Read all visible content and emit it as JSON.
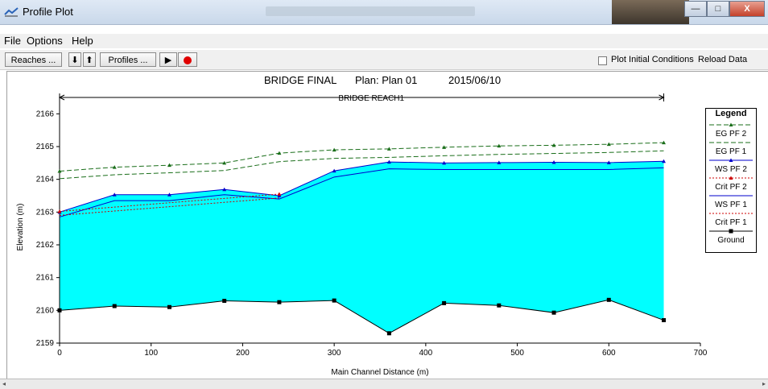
{
  "window": {
    "title": "Profile Plot",
    "min_label": "—",
    "max_label": "□",
    "close_label": "X"
  },
  "menu": {
    "items": [
      "File",
      "Options",
      "Help"
    ]
  },
  "toolbar": {
    "reaches_label": "Reaches ...",
    "down_arrow": "⬇",
    "up_arrow": "⬆",
    "profiles_label": "Profiles ...",
    "play_label": "▶",
    "plot_initial_conditions_label": "Plot Initial Conditions",
    "plot_initial_conditions_checked": false,
    "reload_label": "Reload Data"
  },
  "colors": {
    "water": "#00ffff",
    "ws": "#0000cc",
    "crit": "#cc0000",
    "eg": "#1a6e1a",
    "ground": "#000000"
  },
  "chart_data": {
    "type": "area",
    "title_parts": [
      "BRIDGE FINAL",
      "Plan: Plan 01",
      "2015/06/10"
    ],
    "reach_label": "BRIDGE REACH1",
    "xlabel": "Main Channel Distance (m)",
    "ylabel": "Elevation (m)",
    "xlim": [
      0,
      700
    ],
    "ylim": [
      2159,
      2166.5
    ],
    "xticks": [
      0,
      100,
      200,
      300,
      400,
      500,
      600,
      700
    ],
    "yticks": [
      2159,
      2160,
      2161,
      2162,
      2163,
      2164,
      2165,
      2166
    ],
    "reach_extent": [
      0,
      660
    ],
    "x": [
      0,
      60,
      120,
      180,
      240,
      300,
      360,
      420,
      480,
      540,
      600,
      660
    ],
    "series": [
      {
        "name": "EG PF 2",
        "style": "eg2",
        "values": [
          2164.25,
          2164.37,
          2164.43,
          2164.5,
          2164.8,
          2164.9,
          2164.93,
          2164.98,
          2165.02,
          2165.04,
          2165.07,
          2165.12
        ]
      },
      {
        "name": "EG PF 1",
        "style": "eg1",
        "values": [
          2164.02,
          2164.14,
          2164.2,
          2164.27,
          2164.54,
          2164.64,
          2164.67,
          2164.72,
          2164.76,
          2164.79,
          2164.82,
          2164.87
        ]
      },
      {
        "name": "WS PF 2",
        "style": "ws2",
        "values": [
          2163.0,
          2163.53,
          2163.53,
          2163.69,
          2163.5,
          2164.26,
          2164.53,
          2164.5,
          2164.51,
          2164.52,
          2164.51,
          2164.55
        ]
      },
      {
        "name": "Crit PF 2",
        "style": "crit2",
        "values": [
          2163.02,
          null,
          null,
          null,
          2163.55,
          null,
          null,
          null,
          null,
          null,
          null,
          null
        ]
      },
      {
        "name": "WS PF 1",
        "style": "ws1",
        "values": [
          2162.85,
          2163.35,
          2163.35,
          2163.53,
          2163.4,
          2164.07,
          2164.32,
          2164.3,
          2164.3,
          2164.3,
          2164.3,
          2164.35
        ]
      },
      {
        "name": "Crit PF 1",
        "style": "crit1",
        "values": [
          2162.9,
          null,
          null,
          null,
          2163.43,
          null,
          null,
          null,
          null,
          null,
          null,
          null
        ]
      },
      {
        "name": "Ground",
        "style": "ground",
        "values": [
          2160.0,
          2160.13,
          2160.1,
          2160.29,
          2160.25,
          2160.3,
          2159.3,
          2160.22,
          2160.15,
          2159.93,
          2160.32,
          2159.7
        ]
      }
    ],
    "legend": {
      "title": "Legend",
      "placement": "right",
      "entries": [
        "EG  PF 2",
        "EG  PF 1",
        "WS  PF 2",
        "Crit  PF 2",
        "WS  PF 1",
        "Crit  PF 1",
        "Ground"
      ]
    }
  }
}
